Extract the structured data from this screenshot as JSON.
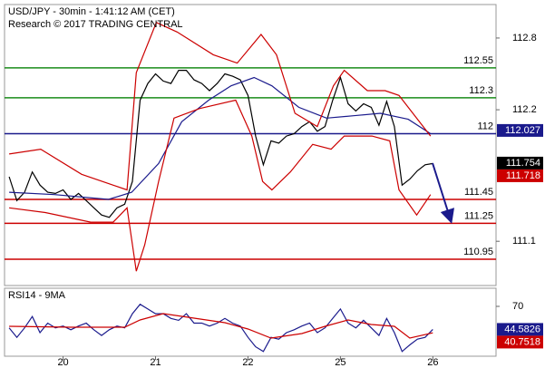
{
  "chart_data": [
    {
      "type": "line",
      "title": "USD/JPY - 30min - 1:41:12 AM (CET)",
      "subtitle": "Research © 2017 TRADING CENTRAL",
      "x": [
        0,
        1,
        2,
        3,
        4,
        5,
        6,
        7,
        8,
        9,
        10,
        11,
        12,
        13,
        14,
        15,
        16,
        17,
        18,
        19,
        20,
        21,
        22,
        23,
        24,
        25,
        26,
        27,
        28,
        29,
        30,
        31,
        32,
        33,
        34,
        35,
        36,
        37,
        38,
        39,
        40,
        41,
        42,
        43,
        44,
        45,
        46,
        47,
        48,
        49,
        50,
        51,
        52,
        53,
        54,
        55
      ],
      "series": [
        {
          "color": "#000000",
          "values": [
            111.64,
            111.44,
            111.51,
            111.68,
            111.57,
            111.51,
            111.5,
            111.53,
            111.45,
            111.5,
            111.44,
            111.38,
            111.32,
            111.3,
            111.38,
            111.41,
            111.6,
            112.28,
            112.42,
            112.5,
            112.44,
            112.42,
            112.53,
            112.53,
            112.45,
            112.42,
            112.36,
            112.42,
            112.5,
            112.48,
            112.45,
            112.32,
            111.98,
            111.74,
            111.94,
            111.92,
            111.98,
            112.0,
            112.06,
            112.1,
            112.02,
            112.06,
            112.28,
            112.47,
            112.25,
            112.19,
            112.25,
            112.22,
            112.07,
            112.27,
            112.06,
            111.57,
            111.62,
            111.69,
            111.74,
            111.75
          ]
        },
        {
          "color": "#1a1a8c",
          "x": [
            0,
            5.9,
            12.9,
            15.9,
            19.4,
            22.4,
            25.9,
            28.8,
            31.8,
            34.1,
            37.6,
            41.2,
            44.7,
            48.2,
            51.8,
            54.7
          ],
          "values": [
            111.51,
            111.49,
            111.45,
            111.51,
            111.75,
            112.1,
            112.28,
            112.4,
            112.47,
            112.4,
            112.22,
            112.13,
            112.15,
            112.17,
            112.12,
            112.0
          ]
        },
        {
          "color": "#cc0000",
          "x": [
            0,
            4.1,
            9.4,
            15.3,
            16.5,
            19.1,
            21.8,
            26.5,
            29.6,
            32.7,
            34.7,
            37.1,
            40,
            42.1,
            43.5,
            46.5,
            48.8,
            50.6,
            54.7
          ],
          "values": [
            111.83,
            111.87,
            111.66,
            111.53,
            112.51,
            112.93,
            112.85,
            112.66,
            112.59,
            112.83,
            112.66,
            112.17,
            112.06,
            112.4,
            112.53,
            112.36,
            112.36,
            112.32,
            111.98
          ]
        },
        {
          "color": "#cc0000",
          "x": [
            0,
            4.7,
            10.6,
            13.5,
            15.3,
            16.5,
            17.6,
            19.4,
            21.4,
            24.7,
            29.4,
            31.5,
            32.9,
            34.1,
            36.5,
            39.4,
            41.8,
            43.5,
            47.1,
            49.4,
            50.6,
            52.9,
            54.7
          ],
          "values": [
            111.38,
            111.34,
            111.26,
            111.26,
            111.38,
            110.85,
            111.07,
            111.6,
            112.13,
            112.21,
            112.28,
            111.98,
            111.6,
            111.53,
            111.68,
            111.91,
            111.87,
            111.98,
            111.98,
            111.94,
            111.53,
            111.32,
            111.49
          ]
        }
      ],
      "levels": [
        {
          "value": 112.55,
          "color": "#1a8c1a"
        },
        {
          "value": 112.3,
          "color": "#1a8c1a"
        },
        {
          "value": 112,
          "color": "#1a1a8c"
        },
        {
          "value": 111.45,
          "color": "#cc0000"
        },
        {
          "value": 111.25,
          "color": "#cc0000"
        },
        {
          "value": 110.95,
          "color": "#cc0000"
        }
      ],
      "price_labels": [
        {
          "value": 112.027,
          "color": "#1a1a8c"
        },
        {
          "value": 111.754,
          "color": "#000000"
        },
        {
          "value": 111.718,
          "color": "#cc0000"
        }
      ],
      "xlim": [
        -0.6,
        63.2
      ],
      "ylim": [
        110.73,
        113.08
      ],
      "yticks": [
        112.8,
        112.2,
        111.1
      ]
    },
    {
      "type": "line",
      "title": "RSI14 - 9MA",
      "x": [
        0,
        1,
        2,
        3,
        4,
        5,
        6,
        7,
        8,
        9,
        10,
        11,
        12,
        13,
        14,
        15,
        16,
        17,
        18,
        19,
        20,
        21,
        22,
        23,
        24,
        25,
        26,
        27,
        28,
        29,
        30,
        31,
        32,
        33,
        34,
        35,
        36,
        37,
        38,
        39,
        40,
        41,
        42,
        43,
        44,
        45,
        46,
        47,
        48,
        49,
        50,
        51,
        52,
        53,
        54,
        55
      ],
      "series": [
        {
          "color": "#1a1a8c",
          "values": [
            46.3,
            35.8,
            46.3,
            58.8,
            41.0,
            51.5,
            46.3,
            48.3,
            44.2,
            48.3,
            51.5,
            44.2,
            37.9,
            44.2,
            48.3,
            46.3,
            61.9,
            72.3,
            67.1,
            61.9,
            61.9,
            56.7,
            54.6,
            61.9,
            51.5,
            51.5,
            48.3,
            51.5,
            56.7,
            51.5,
            48.3,
            35.8,
            25.4,
            20.2,
            35.8,
            33.8,
            41.0,
            44.2,
            48.3,
            51.5,
            41.0,
            46.3,
            56.7,
            67.1,
            51.5,
            46.3,
            54.6,
            46.3,
            37.9,
            56.7,
            41.0,
            20.2,
            27.5,
            33.8,
            35.8,
            44.5826
          ]
        },
        {
          "color": "#cc0000",
          "x": [
            0,
            8,
            15,
            17,
            20,
            24,
            28,
            31,
            34,
            38,
            41,
            44,
            47,
            50,
            52,
            55
          ],
          "values": [
            48,
            47,
            47,
            55,
            62,
            57,
            52,
            45,
            35,
            40,
            48,
            55,
            50,
            48,
            35,
            40.7518
          ]
        }
      ],
      "price_labels": [
        {
          "value": 44.5826,
          "color": "#1a1a8c"
        },
        {
          "value": 40.7518,
          "color": "#cc0000"
        }
      ],
      "xlim": [
        -0.6,
        63.2
      ],
      "ylim": [
        15,
        90
      ],
      "yticks": [
        70
      ],
      "xticks": [
        {
          "value": 7,
          "label": "20"
        },
        {
          "value": 19,
          "label": "21"
        },
        {
          "value": 31,
          "label": "22"
        },
        {
          "value": 43,
          "label": "25"
        },
        {
          "value": 55,
          "label": "26"
        }
      ]
    }
  ]
}
